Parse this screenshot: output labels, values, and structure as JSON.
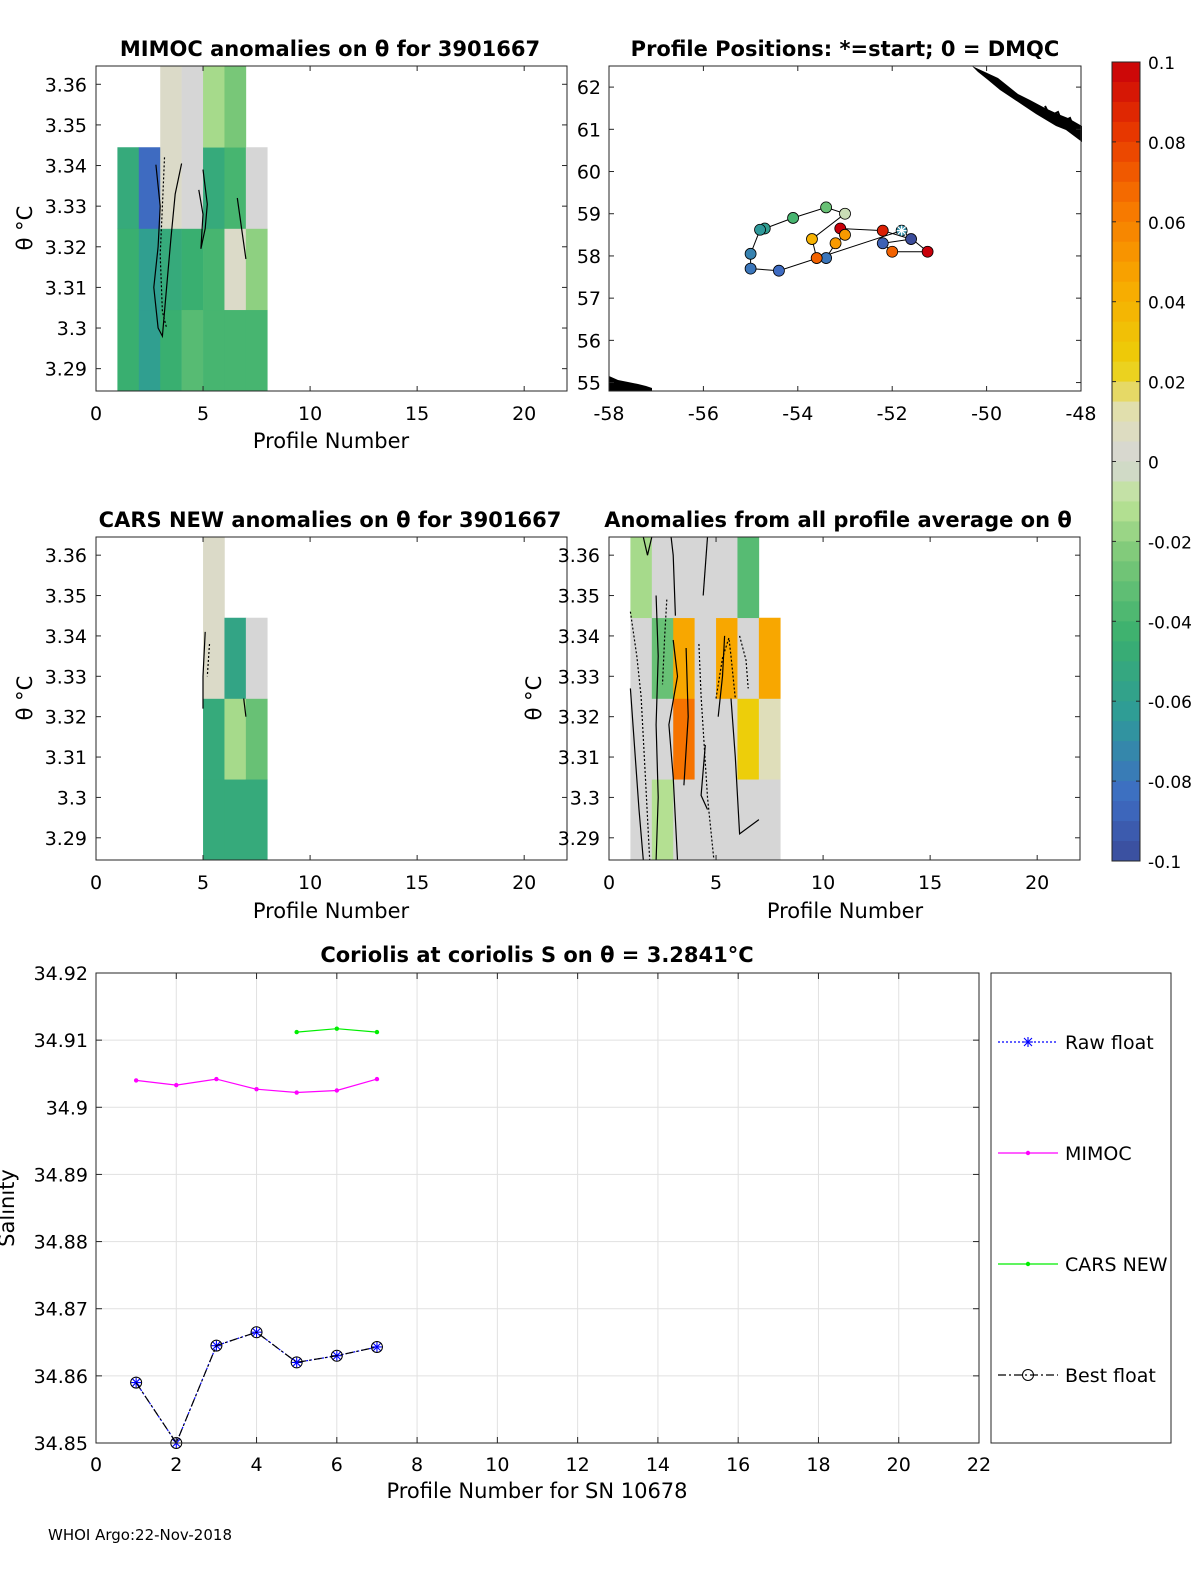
{
  "footer": "WHOI Argo:22-Nov-2018",
  "panel_mimoc": {
    "title": "MIMOC anomalies on θ  for 3901667",
    "xlabel": "Profile Number",
    "ylabel": "θ °C",
    "xticks": [
      "0",
      "5",
      "10",
      "15",
      "20"
    ],
    "yticks": [
      "3.36",
      "3.35",
      "3.34",
      "3.33",
      "3.32",
      "3.31",
      "3.3",
      "3.29"
    ]
  },
  "panel_positions": {
    "title": "Profile Positions: *=start; 0 = DMQC",
    "xticks": [
      "-58",
      "-56",
      "-54",
      "-52",
      "-50",
      "-48"
    ],
    "yticks": [
      "62",
      "61",
      "60",
      "59",
      "58",
      "57",
      "56",
      "55"
    ]
  },
  "panel_cars": {
    "title": "CARS NEW anomalies on θ for 3901667",
    "xlabel": "Profile Number",
    "ylabel": "θ °C",
    "xticks": [
      "0",
      "5",
      "10",
      "15",
      "20"
    ],
    "yticks": [
      "3.36",
      "3.35",
      "3.34",
      "3.33",
      "3.32",
      "3.31",
      "3.3",
      "3.29"
    ]
  },
  "panel_allavg": {
    "title": "Anomalies from all profile average on θ",
    "xlabel": "Profile Number",
    "ylabel": "θ °C",
    "xticks": [
      "0",
      "5",
      "10",
      "15",
      "20"
    ],
    "yticks": [
      "3.36",
      "3.35",
      "3.34",
      "3.33",
      "3.32",
      "3.31",
      "3.3",
      "3.29"
    ]
  },
  "colorbar": {
    "ticks": [
      "0.1",
      "0.08",
      "0.06",
      "0.04",
      "0.02",
      "0",
      "-0.02",
      "-0.04",
      "-0.06",
      "-0.08",
      "-0.1"
    ]
  },
  "panel_salinity": {
    "title": "Coriolis at coriolis S on θ = 3.2841°C",
    "xlabel": "Profile Number for SN 10678",
    "ylabel": "Salinity",
    "xticks": [
      "0",
      "2",
      "4",
      "6",
      "8",
      "10",
      "12",
      "14",
      "16",
      "18",
      "20",
      "22"
    ],
    "yticks": [
      "34.92",
      "34.91",
      "34.9",
      "34.89",
      "34.88",
      "34.87",
      "34.86",
      "34.85"
    ],
    "legend": [
      "Raw float",
      "MIMOC",
      "CARS NEW",
      "Best float"
    ]
  },
  "colors": {
    "mimoc": "#ff00ff",
    "cars": "#00ee00",
    "raw": "#0000ff",
    "best": "#000000"
  },
  "chart_data": [
    {
      "type": "heatmap",
      "name": "MIMOC anomalies",
      "xlim": [
        0,
        22
      ],
      "ylim": [
        3.2845,
        3.3645
      ],
      "cells": [
        {
          "x": 1.5,
          "y0": 3.2845,
          "y1": 3.3045,
          "v": -0.045
        },
        {
          "x": 1.5,
          "y0": 3.3045,
          "y1": 3.3245,
          "v": -0.045
        },
        {
          "x": 1.5,
          "y0": 3.3245,
          "y1": 3.3445,
          "v": -0.05
        },
        {
          "x": 2.5,
          "y0": 3.2845,
          "y1": 3.3045,
          "v": -0.06
        },
        {
          "x": 2.5,
          "y0": 3.3045,
          "y1": 3.3245,
          "v": -0.06
        },
        {
          "x": 2.5,
          "y0": 3.3245,
          "y1": 3.3445,
          "v": -0.085
        },
        {
          "x": 3.5,
          "y0": 3.2845,
          "y1": 3.3045,
          "v": -0.045
        },
        {
          "x": 3.5,
          "y0": 3.3045,
          "y1": 3.3245,
          "v": -0.05
        },
        {
          "x": 3.5,
          "y0": 3.3245,
          "y1": 3.3445,
          "v": 0.005
        },
        {
          "x": 3.5,
          "y0": 3.3445,
          "y1": 3.3645,
          "v": 0.005
        },
        {
          "x": 4.5,
          "y0": 3.2845,
          "y1": 3.3045,
          "v": -0.035
        },
        {
          "x": 4.5,
          "y0": 3.3045,
          "y1": 3.3245,
          "v": -0.045
        },
        {
          "x": 4.5,
          "y0": 3.3245,
          "y1": 3.3445,
          "v": 0.0
        },
        {
          "x": 4.5,
          "y0": 3.3445,
          "y1": 3.3645,
          "v": 0.0
        },
        {
          "x": 5.5,
          "y0": 3.2845,
          "y1": 3.3045,
          "v": -0.04
        },
        {
          "x": 5.5,
          "y0": 3.3045,
          "y1": 3.3245,
          "v": -0.04
        },
        {
          "x": 5.5,
          "y0": 3.3245,
          "y1": 3.3445,
          "v": -0.05
        },
        {
          "x": 5.5,
          "y0": 3.3445,
          "y1": 3.3645,
          "v": -0.015
        },
        {
          "x": 6.5,
          "y0": 3.2845,
          "y1": 3.3045,
          "v": -0.04
        },
        {
          "x": 6.5,
          "y0": 3.3045,
          "y1": 3.3245,
          "v": 0.005
        },
        {
          "x": 6.5,
          "y0": 3.3245,
          "y1": 3.3445,
          "v": -0.04
        },
        {
          "x": 6.5,
          "y0": 3.3445,
          "y1": 3.3645,
          "v": -0.025
        },
        {
          "x": 7.5,
          "y0": 3.2845,
          "y1": 3.3045,
          "v": -0.04
        },
        {
          "x": 7.5,
          "y0": 3.3045,
          "y1": 3.3245,
          "v": -0.02
        },
        {
          "x": 7.5,
          "y0": 3.3245,
          "y1": 3.3445,
          "v": 0.0
        }
      ],
      "contours": [
        [
          [
            2.8,
            3.3402
          ],
          [
            3.0,
            3.33
          ],
          [
            2.9,
            3.32
          ],
          [
            2.7,
            3.31
          ],
          [
            2.9,
            3.3
          ],
          [
            3.1,
            3.298
          ],
          [
            3.3,
            3.31
          ],
          [
            3.5,
            3.322
          ],
          [
            3.7,
            3.333
          ],
          [
            4.0,
            3.3405
          ]
        ],
        [
          [
            3.2,
            3.342
          ],
          [
            3.1,
            3.33
          ],
          [
            3.0,
            3.318
          ],
          [
            3.1,
            3.304
          ],
          [
            3.3,
            3.3
          ]
        ],
        [
          [
            4.8,
            3.334
          ],
          [
            5.0,
            3.328
          ],
          [
            4.9,
            3.3195
          ],
          [
            5.1,
            3.3245
          ],
          [
            5.2,
            3.3305
          ],
          [
            5.0,
            3.339
          ]
        ],
        [
          [
            6.6,
            3.332
          ],
          [
            6.8,
            3.3245
          ],
          [
            7.0,
            3.317
          ]
        ]
      ]
    },
    {
      "type": "scatter",
      "name": "Profile Positions",
      "xlim": [
        -58,
        -48
      ],
      "ylim": [
        54.8,
        62.5
      ],
      "points": [
        {
          "lon": -51.8,
          "lat": 58.6,
          "v": -0.07,
          "start": true
        },
        {
          "lon": -51.25,
          "lat": 58.1,
          "v": 0.1
        },
        {
          "lon": -52.0,
          "lat": 58.1,
          "v": 0.07
        },
        {
          "lon": -52.2,
          "lat": 58.3,
          "v": -0.09
        },
        {
          "lon": -51.6,
          "lat": 58.4,
          "v": -0.1
        },
        {
          "lon": -52.2,
          "lat": 58.6,
          "v": 0.09
        },
        {
          "lon": -53.1,
          "lat": 58.65,
          "v": 0.1
        },
        {
          "lon": -53.0,
          "lat": 58.5,
          "v": 0.05
        },
        {
          "lon": -53.2,
          "lat": 58.3,
          "v": 0.05
        },
        {
          "lon": -53.4,
          "lat": 57.95,
          "v": -0.08
        },
        {
          "lon": -53.6,
          "lat": 57.95,
          "v": 0.07
        },
        {
          "lon": -53.7,
          "lat": 58.4,
          "v": 0.04
        },
        {
          "lon": -53.0,
          "lat": 59.0,
          "v": -0.005
        },
        {
          "lon": -53.4,
          "lat": 59.15,
          "v": -0.03
        },
        {
          "lon": -54.1,
          "lat": 58.9,
          "v": -0.04
        },
        {
          "lon": -54.7,
          "lat": 58.65,
          "v": -0.06
        },
        {
          "lon": -54.8,
          "lat": 58.62,
          "v": -0.065
        },
        {
          "lon": -55.0,
          "lat": 58.05,
          "v": -0.075
        },
        {
          "lon": -55.0,
          "lat": 57.7,
          "v": -0.08
        },
        {
          "lon": -54.4,
          "lat": 57.65,
          "v": -0.085
        }
      ]
    },
    {
      "type": "heatmap",
      "name": "CARS NEW anomalies",
      "xlim": [
        0,
        22
      ],
      "ylim": [
        3.2845,
        3.3645
      ],
      "cells": [
        {
          "x": 5.5,
          "y0": 3.2845,
          "y1": 3.3045,
          "v": -0.05
        },
        {
          "x": 5.5,
          "y0": 3.3045,
          "y1": 3.3245,
          "v": -0.05
        },
        {
          "x": 5.5,
          "y0": 3.3245,
          "y1": 3.3445,
          "v": 0.005
        },
        {
          "x": 5.5,
          "y0": 3.3445,
          "y1": 3.3645,
          "v": 0.005
        },
        {
          "x": 6.5,
          "y0": 3.2845,
          "y1": 3.3045,
          "v": -0.05
        },
        {
          "x": 6.5,
          "y0": 3.3045,
          "y1": 3.3245,
          "v": -0.015
        },
        {
          "x": 6.5,
          "y0": 3.3245,
          "y1": 3.3445,
          "v": -0.055
        },
        {
          "x": 7.5,
          "y0": 3.2845,
          "y1": 3.3045,
          "v": -0.05
        },
        {
          "x": 7.5,
          "y0": 3.3045,
          "y1": 3.3245,
          "v": -0.03
        },
        {
          "x": 7.5,
          "y0": 3.3245,
          "y1": 3.3445,
          "v": 0.0
        }
      ],
      "contours": [
        [
          [
            5.1,
            3.341
          ],
          [
            5.0,
            3.33
          ],
          [
            5.0,
            3.322
          ]
        ],
        [
          [
            5.3,
            3.338
          ],
          [
            5.2,
            3.33
          ]
        ],
        [
          [
            6.9,
            3.3245
          ],
          [
            7.0,
            3.32
          ]
        ]
      ]
    },
    {
      "type": "heatmap",
      "name": "Anomalies from all profile average",
      "xlim": [
        0,
        22
      ],
      "ylim": [
        3.2845,
        3.3645
      ],
      "cells": [
        {
          "x": 1.5,
          "y0": 3.2845,
          "y1": 3.3045,
          "v": 0.0
        },
        {
          "x": 1.5,
          "y0": 3.3045,
          "y1": 3.3245,
          "v": 0.0
        },
        {
          "x": 1.5,
          "y0": 3.3245,
          "y1": 3.3445,
          "v": 0.0
        },
        {
          "x": 1.5,
          "y0": 3.3445,
          "y1": 3.3645,
          "v": -0.015
        },
        {
          "x": 2.5,
          "y0": 3.2845,
          "y1": 3.3045,
          "v": -0.012
        },
        {
          "x": 2.5,
          "y0": 3.3045,
          "y1": 3.3245,
          "v": 0.0
        },
        {
          "x": 2.5,
          "y0": 3.3245,
          "y1": 3.3445,
          "v": -0.03
        },
        {
          "x": 2.5,
          "y0": 3.3445,
          "y1": 3.3645,
          "v": 0.0
        },
        {
          "x": 3.5,
          "y0": 3.2845,
          "y1": 3.3045,
          "v": 0.0
        },
        {
          "x": 3.5,
          "y0": 3.3045,
          "y1": 3.3245,
          "v": 0.065
        },
        {
          "x": 3.5,
          "y0": 3.3245,
          "y1": 3.3445,
          "v": 0.045
        },
        {
          "x": 3.5,
          "y0": 3.3445,
          "y1": 3.3645,
          "v": 0.0
        },
        {
          "x": 4.5,
          "y0": 3.2845,
          "y1": 3.3045,
          "v": 0.0
        },
        {
          "x": 4.5,
          "y0": 3.3045,
          "y1": 3.3245,
          "v": 0.0
        },
        {
          "x": 4.5,
          "y0": 3.3245,
          "y1": 3.3445,
          "v": 0.0
        },
        {
          "x": 4.5,
          "y0": 3.3445,
          "y1": 3.3645,
          "v": 0.0
        },
        {
          "x": 5.5,
          "y0": 3.2845,
          "y1": 3.3045,
          "v": 0.0
        },
        {
          "x": 5.5,
          "y0": 3.3045,
          "y1": 3.3245,
          "v": 0.0
        },
        {
          "x": 5.5,
          "y0": 3.3245,
          "y1": 3.3445,
          "v": 0.045
        },
        {
          "x": 5.5,
          "y0": 3.3445,
          "y1": 3.3645,
          "v": 0.0
        },
        {
          "x": 6.5,
          "y0": 3.2845,
          "y1": 3.3045,
          "v": 0.0
        },
        {
          "x": 6.5,
          "y0": 3.3045,
          "y1": 3.3245,
          "v": 0.025
        },
        {
          "x": 6.5,
          "y0": 3.3245,
          "y1": 3.3445,
          "v": 0.0
        },
        {
          "x": 6.5,
          "y0": 3.3445,
          "y1": 3.3645,
          "v": -0.035
        },
        {
          "x": 7.5,
          "y0": 3.2845,
          "y1": 3.3045,
          "v": 0.0
        },
        {
          "x": 7.5,
          "y0": 3.3045,
          "y1": 3.3245,
          "v": 0.01
        },
        {
          "x": 7.5,
          "y0": 3.3245,
          "y1": 3.3445,
          "v": 0.045
        }
      ],
      "contours": [
        [
          [
            1.0,
            3.327
          ],
          [
            1.2,
            3.312
          ],
          [
            1.4,
            3.297
          ],
          [
            1.6,
            3.2845
          ]
        ],
        [
          [
            1.0,
            3.346
          ],
          [
            1.3,
            3.335
          ],
          [
            1.5,
            3.325
          ],
          [
            1.7,
            3.305
          ],
          [
            1.9,
            3.2845
          ]
        ],
        [
          [
            1.6,
            3.3645
          ],
          [
            1.8,
            3.36
          ],
          [
            2.0,
            3.3645
          ]
        ],
        [
          [
            2.2,
            3.35
          ],
          [
            2.3,
            3.335
          ],
          [
            2.2,
            3.318
          ],
          [
            2.3,
            3.3
          ],
          [
            2.2,
            3.2845
          ]
        ],
        [
          [
            2.7,
            3.349
          ],
          [
            2.6,
            3.34
          ],
          [
            2.5,
            3.328
          ]
        ],
        [
          [
            3.0,
            3.339
          ],
          [
            3.2,
            3.33
          ],
          [
            2.8,
            3.318
          ],
          [
            3.0,
            3.305
          ],
          [
            3.2,
            3.2845
          ]
        ],
        [
          [
            3.6,
            3.337
          ],
          [
            3.7,
            3.32
          ],
          [
            3.5,
            3.303
          ]
        ],
        [
          [
            4.2,
            3.338
          ],
          [
            4.3,
            3.325
          ],
          [
            4.6,
            3.3
          ],
          [
            4.9,
            3.2845
          ]
        ],
        [
          [
            4.5,
            3.313
          ],
          [
            4.3,
            3.3005
          ],
          [
            4.6,
            3.297
          ]
        ],
        [
          [
            4.6,
            3.3645
          ],
          [
            4.4,
            3.35
          ]
        ],
        [
          [
            5.0,
            3.3245
          ],
          [
            5.3,
            3.3345
          ],
          [
            5.6,
            3.3395
          ],
          [
            5.7,
            3.335
          ],
          [
            5.9,
            3.3245
          ]
        ],
        [
          [
            5.4,
            3.34
          ],
          [
            5.3,
            3.33
          ],
          [
            5.1,
            3.32
          ]
        ],
        [
          [
            5.7,
            3.3245
          ],
          [
            5.9,
            3.31
          ],
          [
            6.1,
            3.291
          ],
          [
            7.0,
            3.2945
          ]
        ],
        [
          [
            6.1,
            3.34
          ],
          [
            6.4,
            3.334
          ],
          [
            6.5,
            3.327
          ]
        ],
        [
          [
            3.1,
            3.345
          ],
          [
            3.0,
            3.36
          ],
          [
            2.9,
            3.3645
          ]
        ]
      ]
    },
    {
      "type": "line",
      "name": "Coriolis salinity",
      "xlim": [
        0,
        22
      ],
      "ylim": [
        34.85,
        34.92
      ],
      "series": [
        {
          "name": "Raw float",
          "x": [
            1,
            2,
            3,
            4,
            5,
            6,
            7
          ],
          "values": [
            34.859,
            34.85,
            34.8645,
            34.8665,
            34.862,
            34.863,
            34.8643
          ]
        },
        {
          "name": "MIMOC",
          "x": [
            1,
            2,
            3,
            4,
            5,
            6,
            7
          ],
          "values": [
            34.904,
            34.9033,
            34.9042,
            34.9027,
            34.9022,
            34.9025,
            34.9042
          ]
        },
        {
          "name": "CARS NEW",
          "x": [
            5,
            6,
            7
          ],
          "values": [
            34.9112,
            34.9117,
            34.9112
          ]
        },
        {
          "name": "Best float",
          "x": [
            1,
            2,
            3,
            4,
            5,
            6,
            7
          ],
          "values": [
            34.859,
            34.85,
            34.8645,
            34.8665,
            34.862,
            34.863,
            34.8643
          ]
        }
      ]
    }
  ]
}
